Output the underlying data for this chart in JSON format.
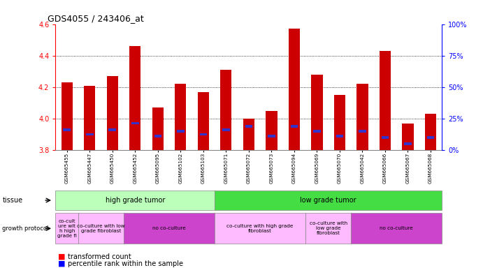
{
  "title": "GDS4055 / 243406_at",
  "samples": [
    "GSM665455",
    "GSM665447",
    "GSM665450",
    "GSM665452",
    "GSM665095",
    "GSM665102",
    "GSM665103",
    "GSM665071",
    "GSM665072",
    "GSM665073",
    "GSM665094",
    "GSM665069",
    "GSM665070",
    "GSM665042",
    "GSM665066",
    "GSM665067",
    "GSM665068"
  ],
  "transformed_count": [
    4.23,
    4.21,
    4.27,
    4.46,
    4.07,
    4.22,
    4.17,
    4.31,
    4.0,
    4.05,
    4.57,
    4.28,
    4.15,
    4.22,
    4.43,
    3.97,
    4.03
  ],
  "percentile_y": [
    3.93,
    3.9,
    3.93,
    3.97,
    3.89,
    3.92,
    3.9,
    3.93,
    3.95,
    3.89,
    3.95,
    3.92,
    3.89,
    3.92,
    3.88,
    3.84,
    3.88
  ],
  "ymin": 3.8,
  "ymax": 4.6,
  "bar_color": "#cc0000",
  "percentile_color": "#3333cc",
  "left_ticks": [
    3.8,
    4.0,
    4.2,
    4.4,
    4.6
  ],
  "right_tick_labels": [
    "0%",
    "25%",
    "50%",
    "75%",
    "100%"
  ],
  "right_tick_y": [
    3.8,
    4.0,
    4.2,
    4.4,
    4.6
  ],
  "tissue_groups": [
    {
      "label": "high grade tumor",
      "start": 0,
      "end": 7,
      "color": "#bbffbb"
    },
    {
      "label": "low grade tumor",
      "start": 7,
      "end": 17,
      "color": "#44dd44"
    }
  ],
  "growth_groups": [
    {
      "label": "co-cult\nure wit\nh high\ngrade fi",
      "start": 0,
      "end": 1,
      "color": "#ffbbff"
    },
    {
      "label": "co-culture with low\ngrade fibroblast",
      "start": 1,
      "end": 3,
      "color": "#ffbbff"
    },
    {
      "label": "no co-culture",
      "start": 3,
      "end": 7,
      "color": "#cc44cc"
    },
    {
      "label": "co-culture with high grade\nfibroblast",
      "start": 7,
      "end": 11,
      "color": "#ffbbff"
    },
    {
      "label": "co-culture with\nlow grade\nfibroblast",
      "start": 11,
      "end": 13,
      "color": "#ffbbff"
    },
    {
      "label": "no co-culture",
      "start": 13,
      "end": 17,
      "color": "#cc44cc"
    }
  ]
}
